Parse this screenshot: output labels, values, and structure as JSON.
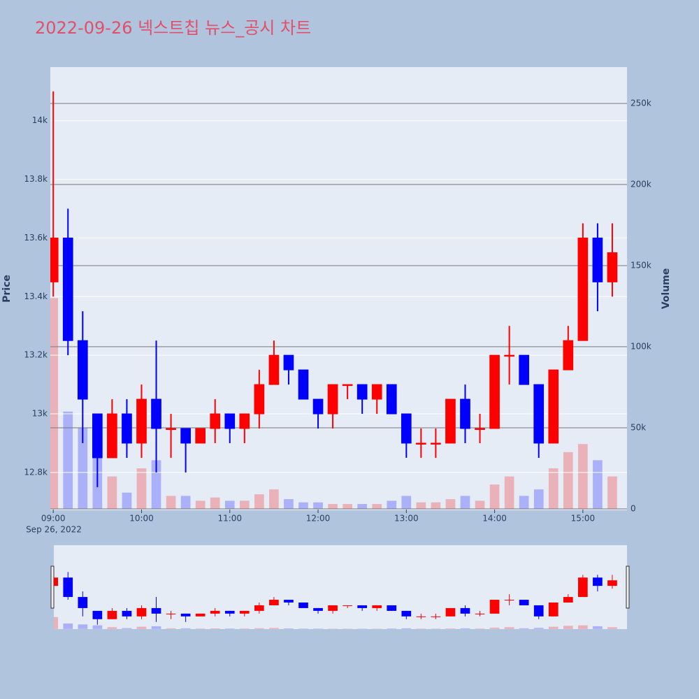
{
  "chart_data": {
    "type": "candlestick",
    "title": "2022-09-26 넥스트칩 뉴스_공시 차트",
    "ylabel": "Price",
    "y2label": "Volume",
    "x_date_label": "Sep 26, 2022",
    "increasing_color": "#ff0000",
    "decreasing_color": "#0000ff",
    "x": [
      "2022-09-26 09:00",
      "2022-09-26 09:10",
      "2022-09-26 09:20",
      "2022-09-26 09:30",
      "2022-09-26 09:40",
      "2022-09-26 09:50",
      "2022-09-26 10:00",
      "2022-09-26 10:10",
      "2022-09-26 10:20",
      "2022-09-26 10:30",
      "2022-09-26 10:40",
      "2022-09-26 10:50",
      "2022-09-26 11:00",
      "2022-09-26 11:10",
      "2022-09-26 11:20",
      "2022-09-26 11:30",
      "2022-09-26 11:40",
      "2022-09-26 11:50",
      "2022-09-26 12:00",
      "2022-09-26 12:10",
      "2022-09-26 12:20",
      "2022-09-26 12:30",
      "2022-09-26 12:40",
      "2022-09-26 12:50",
      "2022-09-26 13:00",
      "2022-09-26 13:10",
      "2022-09-26 13:20",
      "2022-09-26 13:30",
      "2022-09-26 13:40",
      "2022-09-26 13:50",
      "2022-09-26 14:00",
      "2022-09-26 14:10",
      "2022-09-26 14:20",
      "2022-09-26 14:30",
      "2022-09-26 14:40",
      "2022-09-26 14:50",
      "2022-09-26 15:00",
      "2022-09-26 15:10",
      "2022-09-26 15:20"
    ],
    "open": [
      13450,
      13600,
      13250,
      13000,
      12850,
      13000,
      12900,
      13050,
      12950,
      12950,
      12900,
      12950,
      13000,
      12950,
      13000,
      13100,
      13200,
      13150,
      13050,
      13000,
      13100,
      13100,
      13050,
      13100,
      13000,
      12900,
      12900,
      12900,
      13050,
      12950,
      12950,
      13200,
      13200,
      13100,
      12900,
      13150,
      13250,
      13600,
      13450
    ],
    "high": [
      14100,
      13700,
      13350,
      13000,
      13050,
      13050,
      13100,
      13250,
      13000,
      12950,
      12950,
      13050,
      13000,
      13000,
      13150,
      13250,
      13200,
      13150,
      13050,
      13100,
      13100,
      13100,
      13100,
      13100,
      13000,
      12950,
      12950,
      13050,
      13100,
      13000,
      13200,
      13300,
      13200,
      13100,
      13150,
      13300,
      13650,
      13650,
      13650
    ],
    "low": [
      13400,
      13200,
      12900,
      12750,
      12850,
      12850,
      12850,
      12800,
      12850,
      12800,
      12900,
      12900,
      12900,
      12900,
      12950,
      13100,
      13100,
      13050,
      12950,
      12950,
      13050,
      13000,
      13000,
      13000,
      12850,
      12850,
      12850,
      12900,
      12900,
      12900,
      12950,
      13100,
      13100,
      12850,
      12900,
      13150,
      13250,
      13350,
      13400
    ],
    "close": [
      13600,
      13250,
      13050,
      12850,
      13000,
      12900,
      13050,
      12950,
      12950,
      12900,
      12950,
      13000,
      12950,
      13000,
      13100,
      13200,
      13150,
      13050,
      13000,
      13100,
      13100,
      13050,
      13100,
      13000,
      12900,
      12900,
      12900,
      13050,
      12950,
      12950,
      13200,
      13200,
      13100,
      12900,
      13150,
      13250,
      13600,
      13450,
      13550
    ],
    "volume": [
      130000,
      60000,
      50000,
      40000,
      20000,
      10000,
      25000,
      30000,
      8000,
      8000,
      5000,
      7000,
      5000,
      5000,
      9000,
      12000,
      6000,
      4000,
      4000,
      3000,
      3000,
      3000,
      3000,
      5000,
      8000,
      4000,
      4000,
      6000,
      8000,
      5000,
      15000,
      20000,
      8000,
      12000,
      25000,
      35000,
      40000,
      30000,
      20000
    ],
    "xlim": [
      "2022-09-26 08:58",
      "2022-09-26 15:30"
    ],
    "xticks": [
      {
        "value": "2022-09-26 09:00",
        "label": "09:00"
      },
      {
        "value": "2022-09-26 10:00",
        "label": "10:00"
      },
      {
        "value": "2022-09-26 11:00",
        "label": "11:00"
      },
      {
        "value": "2022-09-26 12:00",
        "label": "12:00"
      },
      {
        "value": "2022-09-26 13:00",
        "label": "13:00"
      },
      {
        "value": "2022-09-26 14:00",
        "label": "14:00"
      },
      {
        "value": "2022-09-26 15:00",
        "label": "15:00"
      }
    ],
    "ylim": [
      12671,
      14183
    ],
    "yticks": [
      {
        "value": 12800,
        "label": "12.8k"
      },
      {
        "value": 13000,
        "label": "13k"
      },
      {
        "value": 13200,
        "label": "13.2k"
      },
      {
        "value": 13400,
        "label": "13.4k"
      },
      {
        "value": 13600,
        "label": "13.6k"
      },
      {
        "value": 13800,
        "label": "13.8k"
      },
      {
        "value": 14000,
        "label": "14k"
      }
    ],
    "y2lim": [
      -862,
      272400
    ],
    "y2ticks": [
      0,
      {
        "value": 50000,
        "label": "50k"
      },
      {
        "value": 100000,
        "label": "100k"
      },
      {
        "value": 150000,
        "label": "150k"
      },
      {
        "value": 200000,
        "label": "200k"
      },
      {
        "value": 250000,
        "label": "250k"
      }
    ],
    "grid": true,
    "rangeslider": true
  }
}
